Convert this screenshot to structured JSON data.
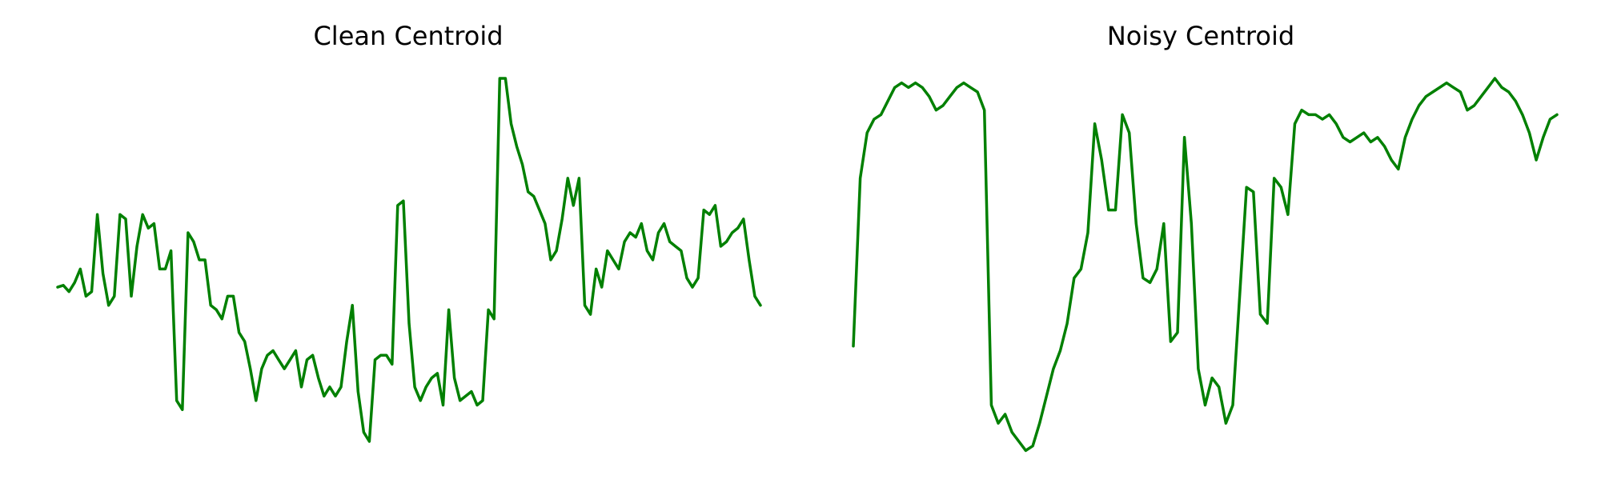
{
  "chart_data": [
    {
      "type": "line",
      "title": "Clean Centroid",
      "xlabel": "",
      "ylabel": "",
      "axes_visible": false,
      "grid": false,
      "line_color": "#008000",
      "ylim": [
        -2.0,
        2.0
      ],
      "series": [
        {
          "values": [
            -0.3,
            -0.28,
            -0.35,
            -0.25,
            -0.1,
            -0.4,
            -0.35,
            0.5,
            -0.15,
            -0.5,
            -0.4,
            0.5,
            0.45,
            -0.4,
            0.15,
            0.5,
            0.35,
            0.4,
            -0.1,
            -0.1,
            0.1,
            -1.55,
            -1.65,
            0.3,
            0.2,
            0.0,
            0.0,
            -0.5,
            -0.55,
            -0.65,
            -0.4,
            -0.4,
            -0.8,
            -0.9,
            -1.2,
            -1.55,
            -1.2,
            -1.05,
            -1.0,
            -1.1,
            -1.2,
            -1.1,
            -1.0,
            -1.4,
            -1.1,
            -1.05,
            -1.3,
            -1.5,
            -1.4,
            -1.5,
            -1.4,
            -0.9,
            -0.5,
            -1.45,
            -1.9,
            -2.0,
            -1.1,
            -1.05,
            -1.05,
            -1.15,
            0.6,
            0.65,
            -0.7,
            -1.4,
            -1.55,
            -1.4,
            -1.3,
            -1.25,
            -1.6,
            -0.55,
            -1.3,
            -1.55,
            -1.5,
            -1.45,
            -1.6,
            -1.55,
            -0.55,
            -0.65,
            2.0,
            2.0,
            1.5,
            1.25,
            1.05,
            0.75,
            0.7,
            0.55,
            0.4,
            0.0,
            0.1,
            0.45,
            0.9,
            0.6,
            0.9,
            -0.5,
            -0.6,
            -0.1,
            -0.3,
            0.1,
            0.0,
            -0.1,
            0.2,
            0.3,
            0.25,
            0.4,
            0.1,
            0.0,
            0.3,
            0.4,
            0.2,
            0.15,
            0.1,
            -0.2,
            -0.3,
            -0.2,
            0.55,
            0.5,
            0.6,
            0.15,
            0.2,
            0.3,
            0.35,
            0.45,
            0.0,
            -0.4,
            -0.5
          ]
        }
      ]
    },
    {
      "type": "line",
      "title": "Noisy Centroid",
      "xlabel": "",
      "ylabel": "",
      "axes_visible": false,
      "grid": false,
      "line_color": "#008000",
      "ylim": [
        -2.0,
        2.0
      ],
      "series": [
        {
          "values": [
            -0.95,
            0.9,
            1.4,
            1.55,
            1.6,
            1.75,
            1.9,
            1.95,
            1.9,
            1.95,
            1.9,
            1.8,
            1.65,
            1.7,
            1.8,
            1.9,
            1.95,
            1.9,
            1.85,
            1.65,
            -1.6,
            -1.8,
            -1.7,
            -1.9,
            -2.0,
            -2.1,
            -2.05,
            -1.8,
            -1.5,
            -1.2,
            -1.0,
            -0.7,
            -0.2,
            -0.1,
            0.3,
            1.5,
            1.1,
            0.55,
            0.55,
            1.6,
            1.4,
            0.4,
            -0.2,
            -0.25,
            -0.1,
            0.4,
            -0.9,
            -0.8,
            1.35,
            0.4,
            -1.2,
            -1.6,
            -1.3,
            -1.4,
            -1.8,
            -1.6,
            -0.4,
            0.8,
            0.75,
            -0.6,
            -0.7,
            0.9,
            0.8,
            0.5,
            1.5,
            1.65,
            1.6,
            1.6,
            1.55,
            1.6,
            1.5,
            1.35,
            1.3,
            1.35,
            1.4,
            1.3,
            1.35,
            1.25,
            1.1,
            1.0,
            1.35,
            1.55,
            1.7,
            1.8,
            1.85,
            1.9,
            1.95,
            1.9,
            1.85,
            1.65,
            1.7,
            1.8,
            1.9,
            2.0,
            1.9,
            1.85,
            1.75,
            1.6,
            1.4,
            1.1,
            1.35,
            1.55,
            1.6
          ]
        }
      ]
    }
  ]
}
